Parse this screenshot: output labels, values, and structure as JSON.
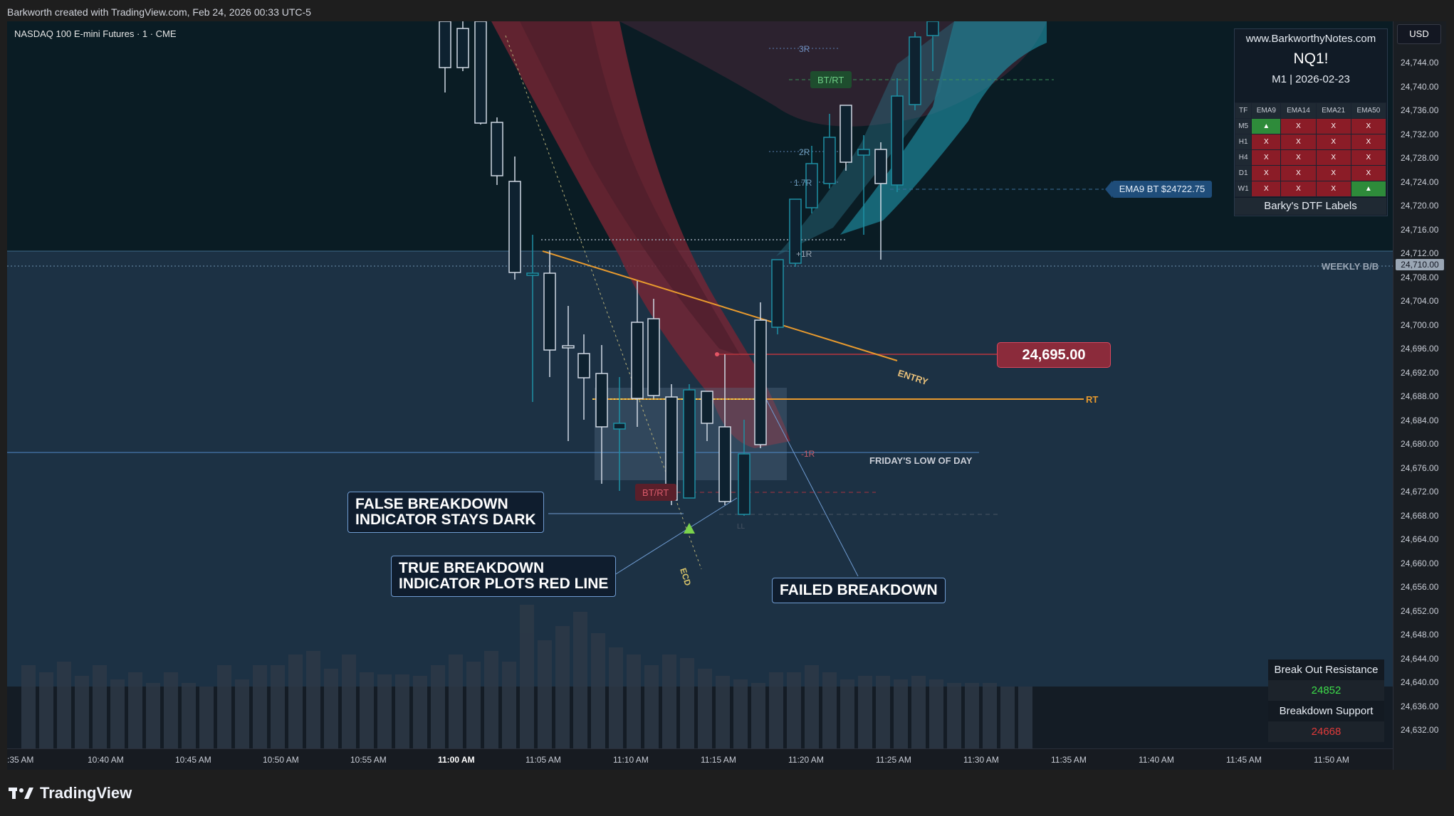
{
  "header": {
    "credit": "Barkworth created with TradingView.com, Feb 24, 2026 00:33 UTC-5"
  },
  "chart": {
    "symbol_line": "NASDAQ 100 E-mini Futures · 1 · CME",
    "currency": "USD",
    "current_price_tag": "24,710.00",
    "price_ticks": [
      "24,744.00",
      "24,740.00",
      "24,736.00",
      "24,732.00",
      "24,728.00",
      "24,724.00",
      "24,720.00",
      "24,716.00",
      "24,712.00",
      "24,708.00",
      "24,704.00",
      "24,700.00",
      "24,696.00",
      "24,692.00",
      "24,688.00",
      "24,684.00",
      "24,680.00",
      "24,676.00",
      "24,672.00",
      "24,668.00",
      "24,664.00",
      "24,660.00",
      "24,656.00",
      "24,652.00",
      "24,648.00",
      "24,644.00",
      "24,640.00",
      "24,636.00",
      "24,632.00"
    ],
    "time_ticks": [
      ":35 AM",
      "10:40 AM",
      "10:45 AM",
      "10:50 AM",
      "10:55 AM",
      "11:00 AM",
      "11:05 AM",
      "11:10 AM",
      "11:15 AM",
      "11:20 AM",
      "11:25 AM",
      "11:30 AM",
      "11:35 AM",
      "11:40 AM",
      "11:45 AM",
      "11:50 AM"
    ],
    "bold_time": "11:00 AM",
    "colors": {
      "entry": "#e89a2e",
      "bull_candle": "#0e2230",
      "candle_outline": "#cfd8e3",
      "red_cloud": "#8b2b3b",
      "teal_cloud": "#1e8fa3"
    }
  },
  "labels": {
    "r3": "3R",
    "r2": "2R",
    "r17": "1.7R",
    "r1p": "+1R",
    "r1n": "-1R",
    "bt_rt_top": "BT/RT",
    "bt_rt_bottom": "BT/RT",
    "weekly": "WEEKLY B/B",
    "entry": "ENTRY",
    "rt": "RT",
    "friday": "FRIDAY'S LOW OF DAY",
    "ecd": "ECD",
    "ll": "LL",
    "entry_price": "24,695.00",
    "ema9_bt": "EMA9 BT $24722.75"
  },
  "callouts": {
    "false_breakdown": "FALSE BREAKDOWN\nINDICATOR STAYS DARK",
    "true_breakdown": "TRUE BREAKDOWN\nINDICATOR PLOTS RED LINE",
    "failed_breakdown": "FAILED BREAKDOWN"
  },
  "info_panel": {
    "site": "www.BarkworthyNotes.com",
    "symbol": "NQ1!",
    "tf_date": "M1  |  2026-02-23",
    "columns": [
      "TF",
      "EMA9",
      "EMA14",
      "EMA21",
      "EMA50"
    ],
    "rows": [
      {
        "tf": "M5",
        "cells": [
          {
            "v": "▲",
            "s": "g"
          },
          {
            "v": "X",
            "s": "r"
          },
          {
            "v": "X",
            "s": "r"
          },
          {
            "v": "X",
            "s": "r"
          }
        ]
      },
      {
        "tf": "H1",
        "cells": [
          {
            "v": "X",
            "s": "r"
          },
          {
            "v": "X",
            "s": "r"
          },
          {
            "v": "X",
            "s": "r"
          },
          {
            "v": "X",
            "s": "r"
          }
        ]
      },
      {
        "tf": "H4",
        "cells": [
          {
            "v": "X",
            "s": "r"
          },
          {
            "v": "X",
            "s": "r"
          },
          {
            "v": "X",
            "s": "r"
          },
          {
            "v": "X",
            "s": "r"
          }
        ]
      },
      {
        "tf": "D1",
        "cells": [
          {
            "v": "X",
            "s": "r"
          },
          {
            "v": "X",
            "s": "r"
          },
          {
            "v": "X",
            "s": "r"
          },
          {
            "v": "X",
            "s": "r"
          }
        ]
      },
      {
        "tf": "W1",
        "cells": [
          {
            "v": "X",
            "s": "r"
          },
          {
            "v": "X",
            "s": "r"
          },
          {
            "v": "X",
            "s": "r"
          },
          {
            "v": "▲",
            "s": "g"
          }
        ]
      }
    ],
    "footer": "Barky's DTF Labels"
  },
  "breakout_box": {
    "resistance_label": "Break Out Resistance",
    "resistance_value": "24852",
    "support_label": "Breakdown Support",
    "support_value": "24668",
    "resistance_color": "#3ddc4a",
    "support_color": "#e03a3a"
  },
  "brand": {
    "name": "TradingView"
  }
}
